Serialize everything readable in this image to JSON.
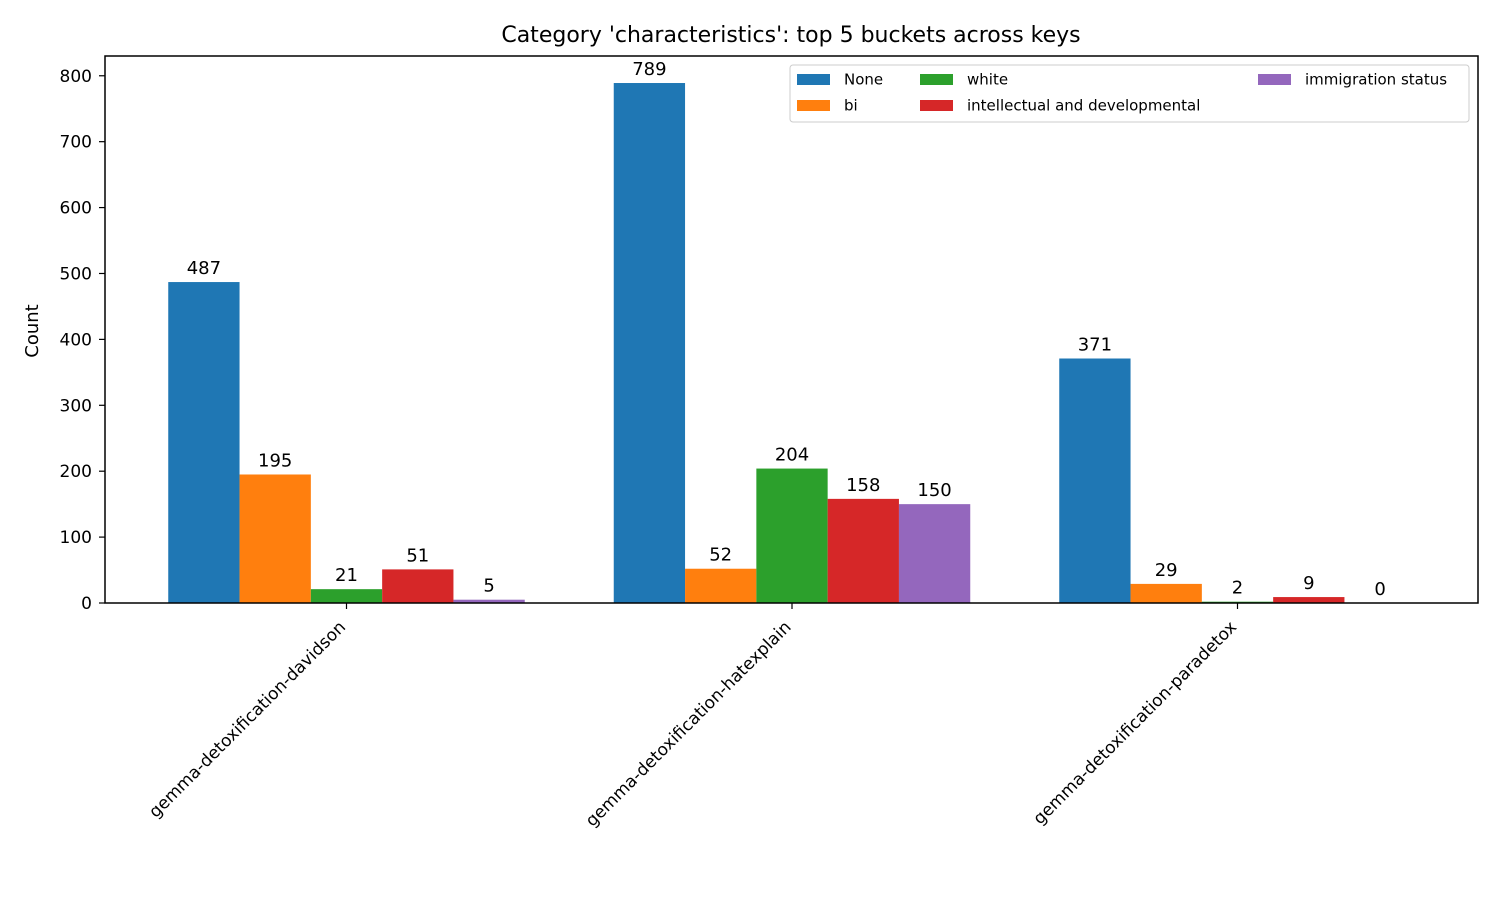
{
  "chart_data": {
    "type": "bar",
    "title": "Category 'characteristics': top 5 buckets across keys",
    "xlabel": "",
    "ylabel": "Count",
    "ylim": [
      0,
      830
    ],
    "yticks": [
      0,
      100,
      200,
      300,
      400,
      500,
      600,
      700,
      800
    ],
    "grid": false,
    "legend_position": "top-right",
    "categories": [
      "gemma-detoxification-davidson",
      "gemma-detoxification-hatexplain",
      "gemma-detoxification-paradetox"
    ],
    "series": [
      {
        "name": "None",
        "color": "#1f77b4",
        "values": [
          487,
          789,
          371
        ]
      },
      {
        "name": "bi",
        "color": "#ff7f0e",
        "values": [
          195,
          52,
          29
        ]
      },
      {
        "name": "white",
        "color": "#2ca02c",
        "values": [
          21,
          204,
          2
        ]
      },
      {
        "name": "intellectual and developmental",
        "color": "#d62728",
        "values": [
          51,
          158,
          9
        ]
      },
      {
        "name": "immigration status",
        "color": "#9467bd",
        "values": [
          5,
          150,
          0
        ]
      }
    ]
  }
}
